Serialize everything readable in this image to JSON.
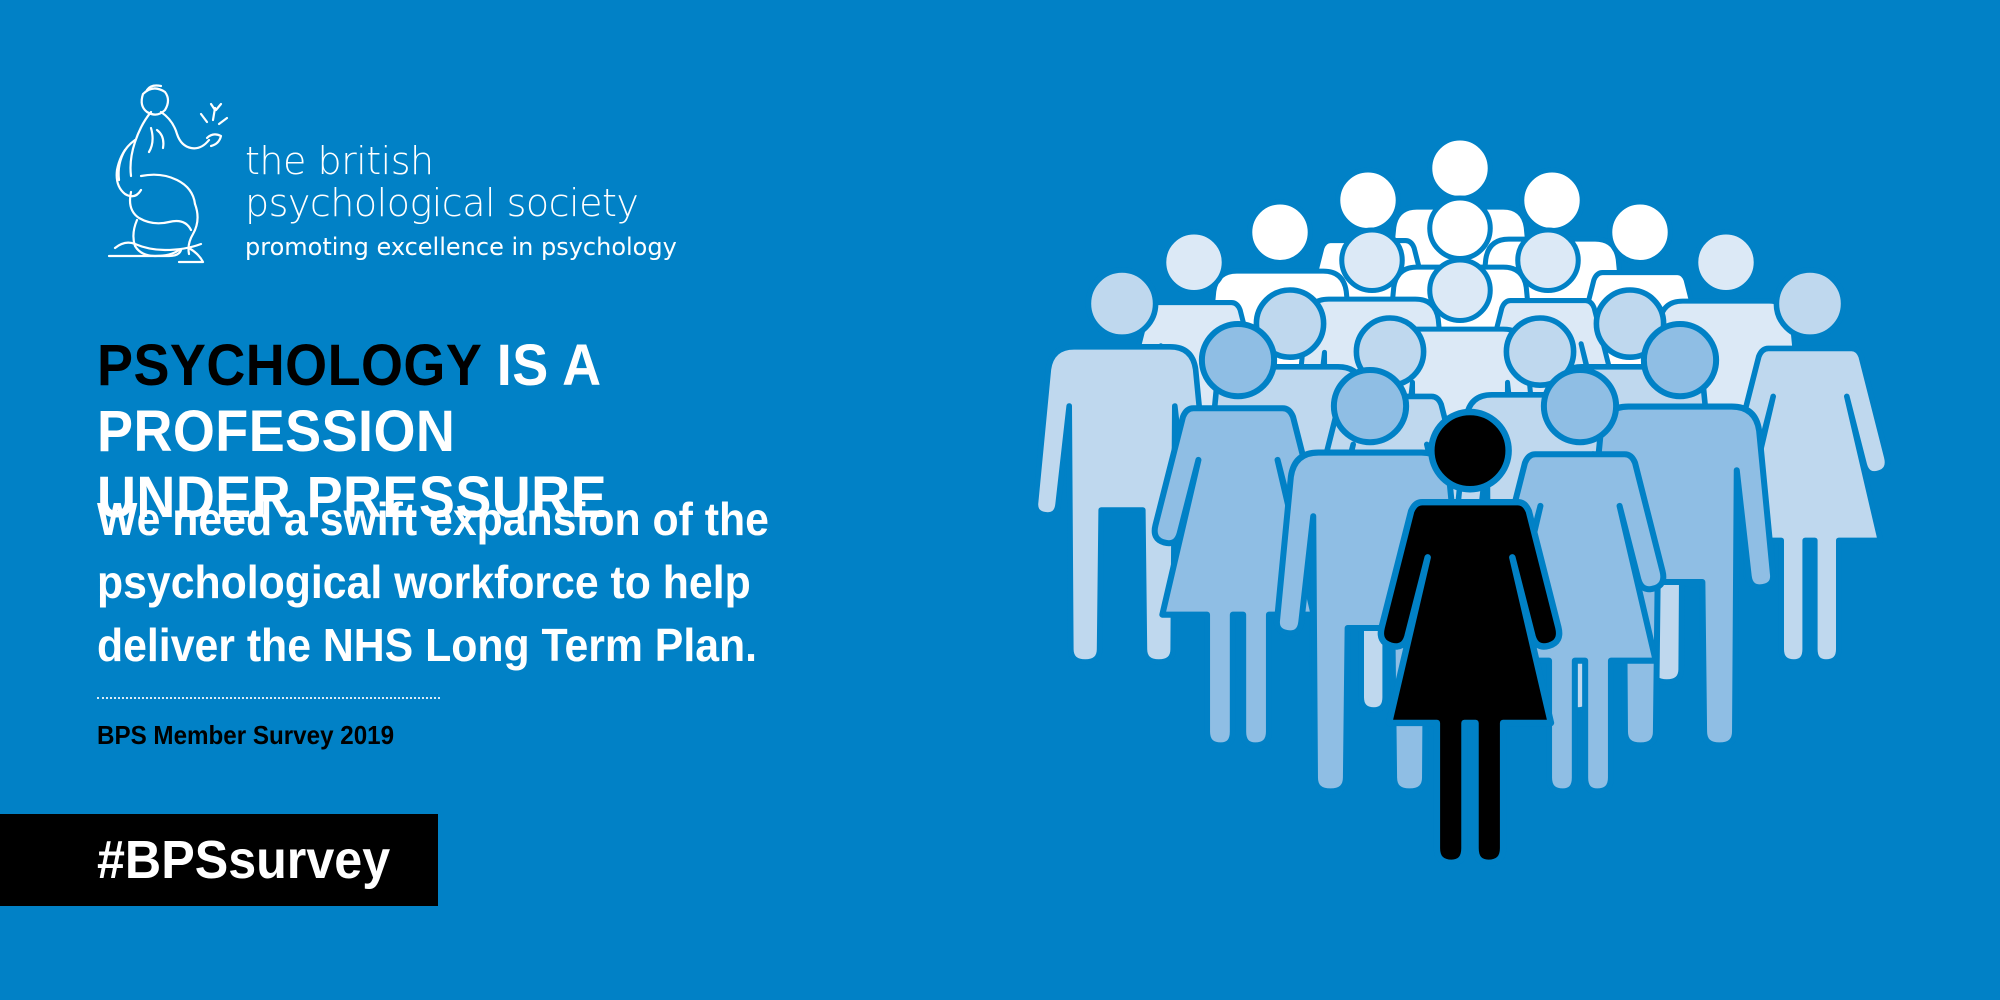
{
  "logo": {
    "title_line1": "the british",
    "title_line2": "psychological society",
    "tagline": "promoting excellence in psychology",
    "icon": "bps-minerva-emblem-icon"
  },
  "headline": {
    "accent_word": "PSYCHOLOGY",
    "rest_line1": " IS A PROFESSION",
    "line2": "UNDER PRESSURE"
  },
  "subhead": {
    "line1": "We need a swift expansion of the",
    "line2": "psychological workforce to help",
    "line3": "deliver the NHS Long Term Plan."
  },
  "source": "BPS Member Survey 2019",
  "hashtag": "#BPSsurvey",
  "illustration": {
    "icon": "crowd-of-people-icon",
    "colors": {
      "background": "#0181c6",
      "tier_white": "#ffffff",
      "tier_lightest": "#dce9f6",
      "tier_light": "#bfd8ee",
      "tier_mid": "#8fbee4",
      "tier_deep": "#5ea8da",
      "foreground": "#000000"
    }
  }
}
